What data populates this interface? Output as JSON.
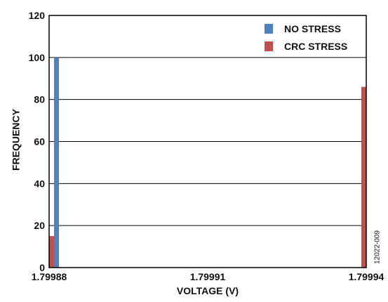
{
  "chart_data": {
    "type": "bar",
    "title": "",
    "xlabel": "VOLTAGE (V)",
    "ylabel": "FREQUENCY",
    "ylim": [
      0,
      120
    ],
    "yticks": [
      0,
      20,
      40,
      60,
      80,
      100,
      120
    ],
    "xticks": [
      "1.79988",
      "1.79991",
      "1.79994"
    ],
    "xlim": [
      1.79988,
      1.79994
    ],
    "grid": true,
    "legend_position": "top-right",
    "series": [
      {
        "name": "NO STRESS",
        "color": "#4f81bd",
        "points": [
          {
            "x": 1.79988,
            "y": 100
          }
        ]
      },
      {
        "name": "CRC STRESS",
        "color": "#c0504d",
        "points": [
          {
            "x": 1.79988,
            "y": 15
          },
          {
            "x": 1.79994,
            "y": 86
          }
        ]
      }
    ]
  },
  "figure_id": "12022-009"
}
